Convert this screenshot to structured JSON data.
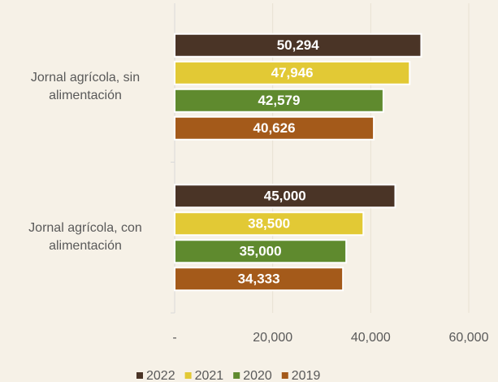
{
  "chart_data": {
    "type": "barh",
    "categories": [
      "Jornal agrícola, sin alimentación",
      "Jornal agrícola, con alimentación"
    ],
    "series": [
      {
        "name": "2022",
        "color": "#4a3426",
        "values": [
          50294,
          45000
        ],
        "value_labels": [
          "50,294",
          "45,000"
        ]
      },
      {
        "name": "2021",
        "color": "#e2c935",
        "values": [
          47946,
          38500
        ],
        "value_labels": [
          "47,946",
          "38,500"
        ]
      },
      {
        "name": "2020",
        "color": "#5f8a2e",
        "values": [
          42579,
          35000
        ],
        "value_labels": [
          "42,579",
          "35,000"
        ]
      },
      {
        "name": "2019",
        "color": "#a45a1a",
        "values": [
          40626,
          34333
        ],
        "value_labels": [
          "40,626",
          "34,333"
        ]
      }
    ],
    "xlim": [
      0,
      60000
    ],
    "xticks": [
      {
        "value": 0,
        "label": "-"
      },
      {
        "value": 20000,
        "label": "20,000"
      },
      {
        "value": 40000,
        "label": "40,000"
      },
      {
        "value": 60000,
        "label": "60,000"
      }
    ],
    "grid": true,
    "legend": "bottom"
  }
}
